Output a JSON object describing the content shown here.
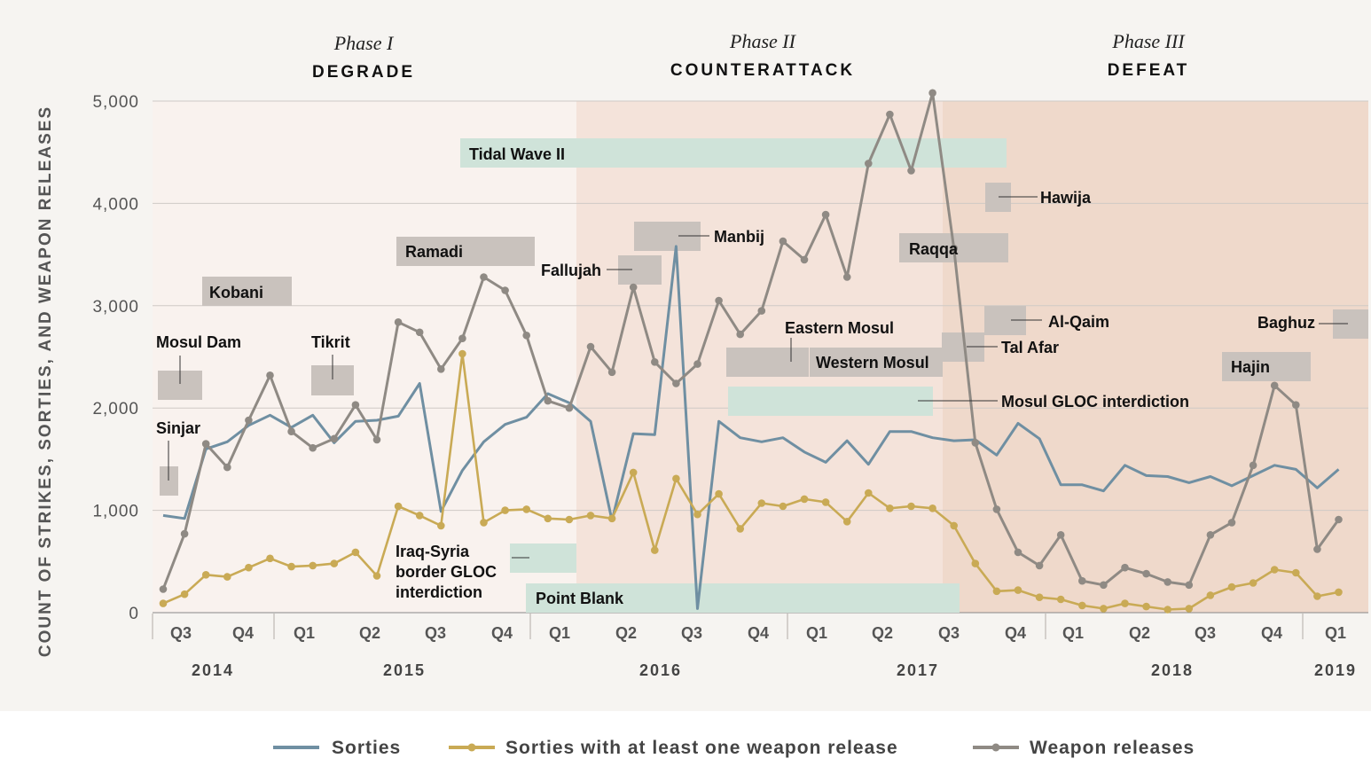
{
  "colors": {
    "sorties": "#6f8fa2",
    "with_release": "#c9aa55",
    "weapon_releases": "#8f8a84",
    "phase1_bg": "#f9f2ee",
    "phase2_bg": "#f4e3da",
    "phase3_bg": "#efd9cb",
    "outer_bg": "#f6f4f1",
    "gray_box": "#c9c2bd",
    "green_box": "#cfe3d9"
  },
  "phases": [
    {
      "number": "Phase I",
      "name": "DEGRADE"
    },
    {
      "number": "Phase II",
      "name": "COUNTERATTACK"
    },
    {
      "number": "Phase III",
      "name": "DEFEAT"
    }
  ],
  "chart_data": {
    "type": "line",
    "ylabel": "COUNT OF STRIKES, SORTIES, AND WEAPON RELEASES",
    "ylim": [
      0,
      5000
    ],
    "yticks": [
      "0",
      "1,000",
      "2,000",
      "3,000",
      "4,000",
      "5,000"
    ],
    "grid": true,
    "legend_position": "bottom",
    "x_axis": {
      "quarters": [
        "Q3",
        "Q4",
        "Q1",
        "Q2",
        "Q3",
        "Q4",
        "Q1",
        "Q2",
        "Q3",
        "Q4",
        "Q1",
        "Q2",
        "Q3",
        "Q4",
        "Q1",
        "Q2",
        "Q3",
        "Q4",
        "Q1"
      ],
      "years": [
        "2014",
        "2015",
        "2016",
        "2017",
        "2018",
        "2019"
      ]
    },
    "x_months": [
      "2014-08",
      "2014-09",
      "2014-10",
      "2014-11",
      "2014-12",
      "2015-01",
      "2015-02",
      "2015-03",
      "2015-04",
      "2015-05",
      "2015-06",
      "2015-07",
      "2015-08",
      "2015-09",
      "2015-10",
      "2015-11",
      "2015-12",
      "2016-01",
      "2016-02",
      "2016-03",
      "2016-04",
      "2016-05",
      "2016-06",
      "2016-07",
      "2016-08",
      "2016-09",
      "2016-10",
      "2016-11",
      "2016-12",
      "2017-01",
      "2017-02",
      "2017-03",
      "2017-04",
      "2017-05",
      "2017-06",
      "2017-07",
      "2017-08",
      "2017-09",
      "2017-10",
      "2017-11",
      "2017-12",
      "2018-01",
      "2018-02",
      "2018-03",
      "2018-04",
      "2018-05",
      "2018-06",
      "2018-07",
      "2018-08",
      "2018-09",
      "2018-10",
      "2018-11",
      "2018-12",
      "2019-01",
      "2019-02",
      "2019-03"
    ],
    "series": [
      {
        "name": "Sorties",
        "values": [
          950,
          920,
          1600,
          1670,
          1830,
          1930,
          1810,
          1930,
          1660,
          1870,
          1880,
          1920,
          2240,
          990,
          1390,
          1670,
          1840,
          1910,
          2140,
          2050,
          1870,
          900,
          1750,
          1740,
          3580,
          40,
          1870,
          1710,
          1670,
          1710,
          1570,
          1470,
          1680,
          1450,
          1770,
          1770,
          1710,
          1680,
          1690,
          1540,
          1850,
          1700,
          1250,
          1250,
          1190,
          1440,
          1340,
          1330,
          1270,
          1330,
          1240,
          1340,
          1440,
          1400,
          1220,
          1400
        ]
      },
      {
        "name": "Sorties with at least one weapon release",
        "values": [
          90,
          180,
          370,
          350,
          440,
          530,
          450,
          460,
          480,
          590,
          360,
          1040,
          950,
          850,
          2530,
          880,
          1000,
          1010,
          920,
          910,
          950,
          920,
          1370,
          610,
          1310,
          960,
          1160,
          820,
          1070,
          1040,
          1110,
          1080,
          890,
          1170,
          1020,
          1040,
          1020,
          850,
          480,
          210,
          220,
          150,
          130,
          70,
          40,
          90,
          60,
          30,
          40,
          170,
          250,
          290,
          420,
          390,
          160,
          200
        ]
      },
      {
        "name": "Weapon releases",
        "values": [
          230,
          770,
          1650,
          1420,
          1880,
          2320,
          1770,
          1610,
          1700,
          2030,
          1690,
          2840,
          2740,
          2380,
          2680,
          3280,
          3150,
          2710,
          2070,
          2000,
          2600,
          2350,
          3180,
          2450,
          2240,
          2430,
          3050,
          2720,
          2950,
          3630,
          3450,
          3890,
          3280,
          4390,
          4870,
          4320,
          5080,
          3560,
          1660,
          1010,
          590,
          460,
          760,
          310,
          270,
          440,
          380,
          300,
          270,
          760,
          880,
          1440,
          2220,
          2030,
          620,
          910
        ]
      }
    ]
  },
  "annotations": {
    "sinjar": "Sinjar",
    "mosul_dam": "Mosul Dam",
    "kobani": "Kobani",
    "tikrit": "Tikrit",
    "ramadi": "Ramadi",
    "tidal_wave": "Tidal Wave II",
    "fallujah": "Fallujah",
    "manbij": "Manbij",
    "eastern_mosul": "Eastern Mosul",
    "western_mosul": "Western Mosul",
    "hawija": "Hawija",
    "raqqa": "Raqqa",
    "al_qaim": "Al-Qaim",
    "tal_afar": "Tal Afar",
    "mosul_gloc": "Mosul GLOC interdiction",
    "hajin": "Hajin",
    "baghuz": "Baghuz",
    "iraq_syria_1": "Iraq-Syria",
    "iraq_syria_2": "border GLOC",
    "iraq_syria_3": "interdiction",
    "point_blank": "Point Blank"
  }
}
